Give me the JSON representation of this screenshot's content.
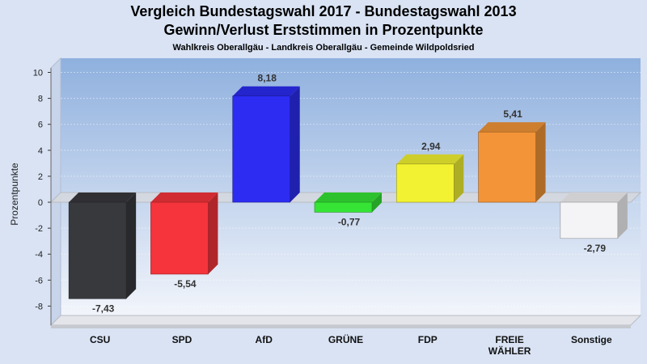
{
  "chart_data": {
    "type": "bar",
    "title": "Vergleich Bundestagswahl 2017 - Bundestagswahl 2013",
    "subtitle": "Gewinn/Verlust Erststimmen in Prozentpunkte",
    "subsubtitle": "Wahlkreis Oberallgäu - Landkreis Oberallgäu - Gemeinde Wildpoldsried",
    "ylabel": "Prozentpunkte",
    "xlabel": "",
    "ylim": [
      -9,
      10.5
    ],
    "yticks": [
      "10",
      "8",
      "6",
      "4",
      "2",
      "0",
      "-2",
      "-4",
      "-6",
      "-8"
    ],
    "grid": true,
    "categories": [
      [
        "CSU"
      ],
      [
        "SPD"
      ],
      [
        "AfD"
      ],
      [
        "GRÜNE"
      ],
      [
        "FDP"
      ],
      [
        "FREIE",
        "WÄHLER"
      ],
      [
        "Sonstige"
      ]
    ],
    "values": [
      -7.43,
      -5.54,
      8.18,
      -0.77,
      2.94,
      5.41,
      -2.79
    ],
    "value_labels": [
      "-7,43",
      "-5,54",
      "8,18",
      "-0,77",
      "2,94",
      "5,41",
      "-2,79"
    ],
    "colors": [
      "#38393d",
      "#f5343b",
      "#2c2cf2",
      "#35e435",
      "#f2f232",
      "#f29437",
      "#f4f4f7"
    ]
  }
}
